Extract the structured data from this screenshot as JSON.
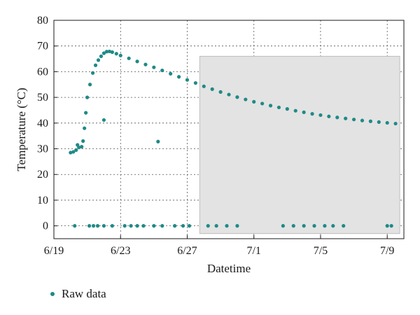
{
  "chart_data": {
    "type": "scatter",
    "xlabel": "Datetime",
    "ylabel": "Temperature (°C)",
    "xlim": [
      "2000-06-19",
      "2000-07-10"
    ],
    "ylim": [
      -5,
      80
    ],
    "x_tick_labels": [
      "6/19",
      "6/23",
      "6/27",
      "7/1",
      "7/5",
      "7/9"
    ],
    "y_ticks": [
      0,
      10,
      20,
      30,
      40,
      50,
      60,
      70,
      80
    ],
    "grid": true,
    "legend_placement": "bottom-left",
    "point_color": "#1f8a87",
    "highlight_color": "#e3e3e3",
    "highlight_range": {
      "x": [
        "2000-06-27 18:00",
        "2000-07-09 18:00"
      ],
      "y": [
        -3,
        66
      ]
    },
    "series": [
      {
        "name": "Raw data",
        "points": [
          [
            "2000-06-20 00:00",
            28.5
          ],
          [
            "2000-06-20 04:00",
            28.8
          ],
          [
            "2000-06-20 08:00",
            29.5
          ],
          [
            "2000-06-20 10:00",
            31.5
          ],
          [
            "2000-06-20 12:00",
            30.5
          ],
          [
            "2000-06-20 16:00",
            30.8
          ],
          [
            "2000-06-20 18:00",
            33
          ],
          [
            "2000-06-20 20:00",
            38
          ],
          [
            "2000-06-20 22:00",
            44
          ],
          [
            "2000-06-21 00:00",
            50
          ],
          [
            "2000-06-21 04:00",
            55
          ],
          [
            "2000-06-21 08:00",
            59.5
          ],
          [
            "2000-06-21 12:00",
            62.5
          ],
          [
            "2000-06-21 16:00",
            64.5
          ],
          [
            "2000-06-21 20:00",
            66
          ],
          [
            "2000-06-22 00:00",
            67.2
          ],
          [
            "2000-06-22 04:00",
            67.8
          ],
          [
            "2000-06-22 08:00",
            67.9
          ],
          [
            "2000-06-22 12:00",
            67.6
          ],
          [
            "2000-06-22 18:00",
            67
          ],
          [
            "2000-06-23 00:00",
            66.3
          ],
          [
            "2000-06-23 12:00",
            65.2
          ],
          [
            "2000-06-24 00:00",
            64
          ],
          [
            "2000-06-24 12:00",
            62.8
          ],
          [
            "2000-06-25 00:00",
            61.7
          ],
          [
            "2000-06-25 12:00",
            60.5
          ],
          [
            "2000-06-26 00:00",
            59.2
          ],
          [
            "2000-06-26 12:00",
            58
          ],
          [
            "2000-06-27 00:00",
            56.8
          ],
          [
            "2000-06-27 12:00",
            55.6
          ],
          [
            "2000-06-28 00:00",
            54.3
          ],
          [
            "2000-06-28 12:00",
            53.2
          ],
          [
            "2000-06-29 00:00",
            52.1
          ],
          [
            "2000-06-29 12:00",
            51.1
          ],
          [
            "2000-06-30 00:00",
            50.1
          ],
          [
            "2000-06-30 12:00",
            49.2
          ],
          [
            "2000-07-01 00:00",
            48.3
          ],
          [
            "2000-07-01 12:00",
            47.6
          ],
          [
            "2000-07-02 00:00",
            46.8
          ],
          [
            "2000-07-02 12:00",
            46.1
          ],
          [
            "2000-07-03 00:00",
            45.5
          ],
          [
            "2000-07-03 12:00",
            44.8
          ],
          [
            "2000-07-04 00:00",
            44.2
          ],
          [
            "2000-07-04 12:00",
            43.6
          ],
          [
            "2000-07-05 00:00",
            43.1
          ],
          [
            "2000-07-05 12:00",
            42.6
          ],
          [
            "2000-07-06 00:00",
            42.2
          ],
          [
            "2000-07-06 12:00",
            41.8
          ],
          [
            "2000-07-07 00:00",
            41.4
          ],
          [
            "2000-07-07 12:00",
            41
          ],
          [
            "2000-07-08 00:00",
            40.7
          ],
          [
            "2000-07-08 12:00",
            40.4
          ],
          [
            "2000-07-09 00:00",
            40.1
          ],
          [
            "2000-07-09 12:00",
            39.8
          ],
          [
            "2000-06-22 00:00",
            41.2
          ],
          [
            "2000-06-25 06:00",
            32.8
          ],
          [
            "2000-06-20 06:00",
            0
          ],
          [
            "2000-06-21 03:00",
            0
          ],
          [
            "2000-06-21 09:00",
            0
          ],
          [
            "2000-06-21 15:00",
            0
          ],
          [
            "2000-06-22 00:00",
            0
          ],
          [
            "2000-06-22 12:00",
            0
          ],
          [
            "2000-06-23 06:00",
            0
          ],
          [
            "2000-06-23 15:00",
            0
          ],
          [
            "2000-06-24 00:00",
            0
          ],
          [
            "2000-06-24 09:00",
            0
          ],
          [
            "2000-06-25 00:00",
            0
          ],
          [
            "2000-06-25 12:00",
            0
          ],
          [
            "2000-06-26 06:00",
            0
          ],
          [
            "2000-06-26 18:00",
            0
          ],
          [
            "2000-06-27 03:00",
            0
          ],
          [
            "2000-06-28 06:00",
            0
          ],
          [
            "2000-06-28 18:00",
            0
          ],
          [
            "2000-06-29 09:00",
            0
          ],
          [
            "2000-06-30 00:00",
            0
          ],
          [
            "2000-07-02 18:00",
            0
          ],
          [
            "2000-07-03 09:00",
            0
          ],
          [
            "2000-07-04 00:00",
            0
          ],
          [
            "2000-07-04 15:00",
            0
          ],
          [
            "2000-07-05 06:00",
            0
          ],
          [
            "2000-07-05 18:00",
            0
          ],
          [
            "2000-07-06 09:00",
            0
          ],
          [
            "2000-07-09 00:00",
            0
          ],
          [
            "2000-07-09 06:00",
            0
          ]
        ]
      }
    ]
  }
}
